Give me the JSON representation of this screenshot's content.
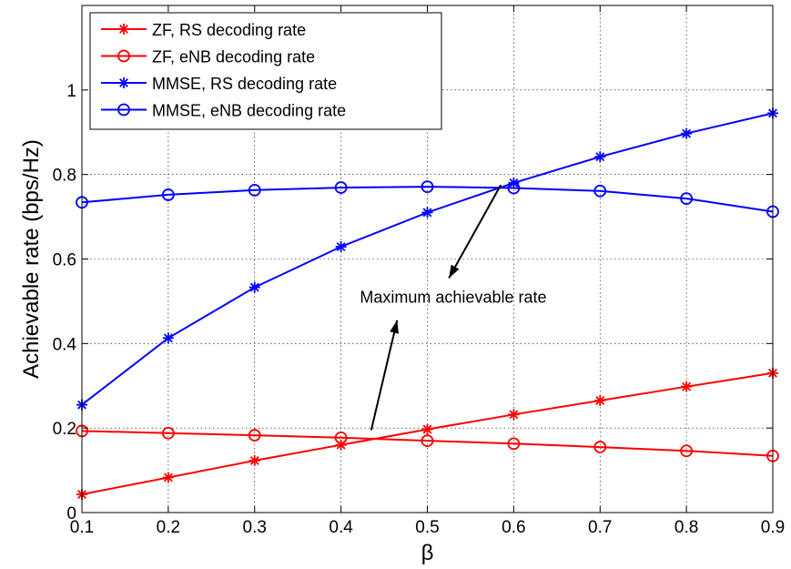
{
  "chart_data": {
    "type": "line",
    "xlabel": "β",
    "ylabel": "Achievable rate (bps/Hz)",
    "xlim": [
      0.1,
      0.9
    ],
    "ylim": [
      0,
      1.2
    ],
    "x_ticks": [
      "0.1",
      "0.2",
      "0.3",
      "0.4",
      "0.5",
      "0.6",
      "0.7",
      "0.8",
      "0.9"
    ],
    "y_ticks": [
      "0",
      "0.2",
      "0.4",
      "0.6",
      "0.8",
      "1"
    ],
    "grid": true,
    "legend_position": "top-left",
    "x": [
      0.1,
      0.2,
      0.3,
      0.4,
      0.5,
      0.6,
      0.7,
      0.8,
      0.9
    ],
    "series": [
      {
        "name": "ZF, RS decoding rate",
        "color": "#ff0000",
        "marker": "asterisk",
        "values": [
          0.043,
          0.083,
          0.123,
          0.16,
          0.197,
          0.232,
          0.265,
          0.298,
          0.33
        ]
      },
      {
        "name": "ZF, eNB decoding rate",
        "color": "#ff0000",
        "marker": "circle",
        "values": [
          0.193,
          0.188,
          0.183,
          0.177,
          0.17,
          0.163,
          0.155,
          0.146,
          0.134
        ]
      },
      {
        "name": "MMSE, RS decoding rate",
        "color": "#0000ff",
        "marker": "asterisk",
        "values": [
          0.255,
          0.413,
          0.533,
          0.629,
          0.71,
          0.78,
          0.842,
          0.897,
          0.945
        ]
      },
      {
        "name": "MMSE, eNB decoding rate",
        "color": "#0000ff",
        "marker": "circle",
        "values": [
          0.734,
          0.752,
          0.763,
          0.769,
          0.771,
          0.768,
          0.761,
          0.743,
          0.712
        ]
      }
    ],
    "annotations": [
      {
        "text": "Maximum achievable rate",
        "x": 0.53,
        "y": 0.51,
        "arrows": [
          {
            "from": [
              0.585,
              0.775
            ],
            "to": [
              0.525,
              0.555
            ]
          },
          {
            "from": [
              0.435,
              0.195
            ],
            "to": [
              0.465,
              0.455
            ]
          }
        ]
      }
    ]
  }
}
